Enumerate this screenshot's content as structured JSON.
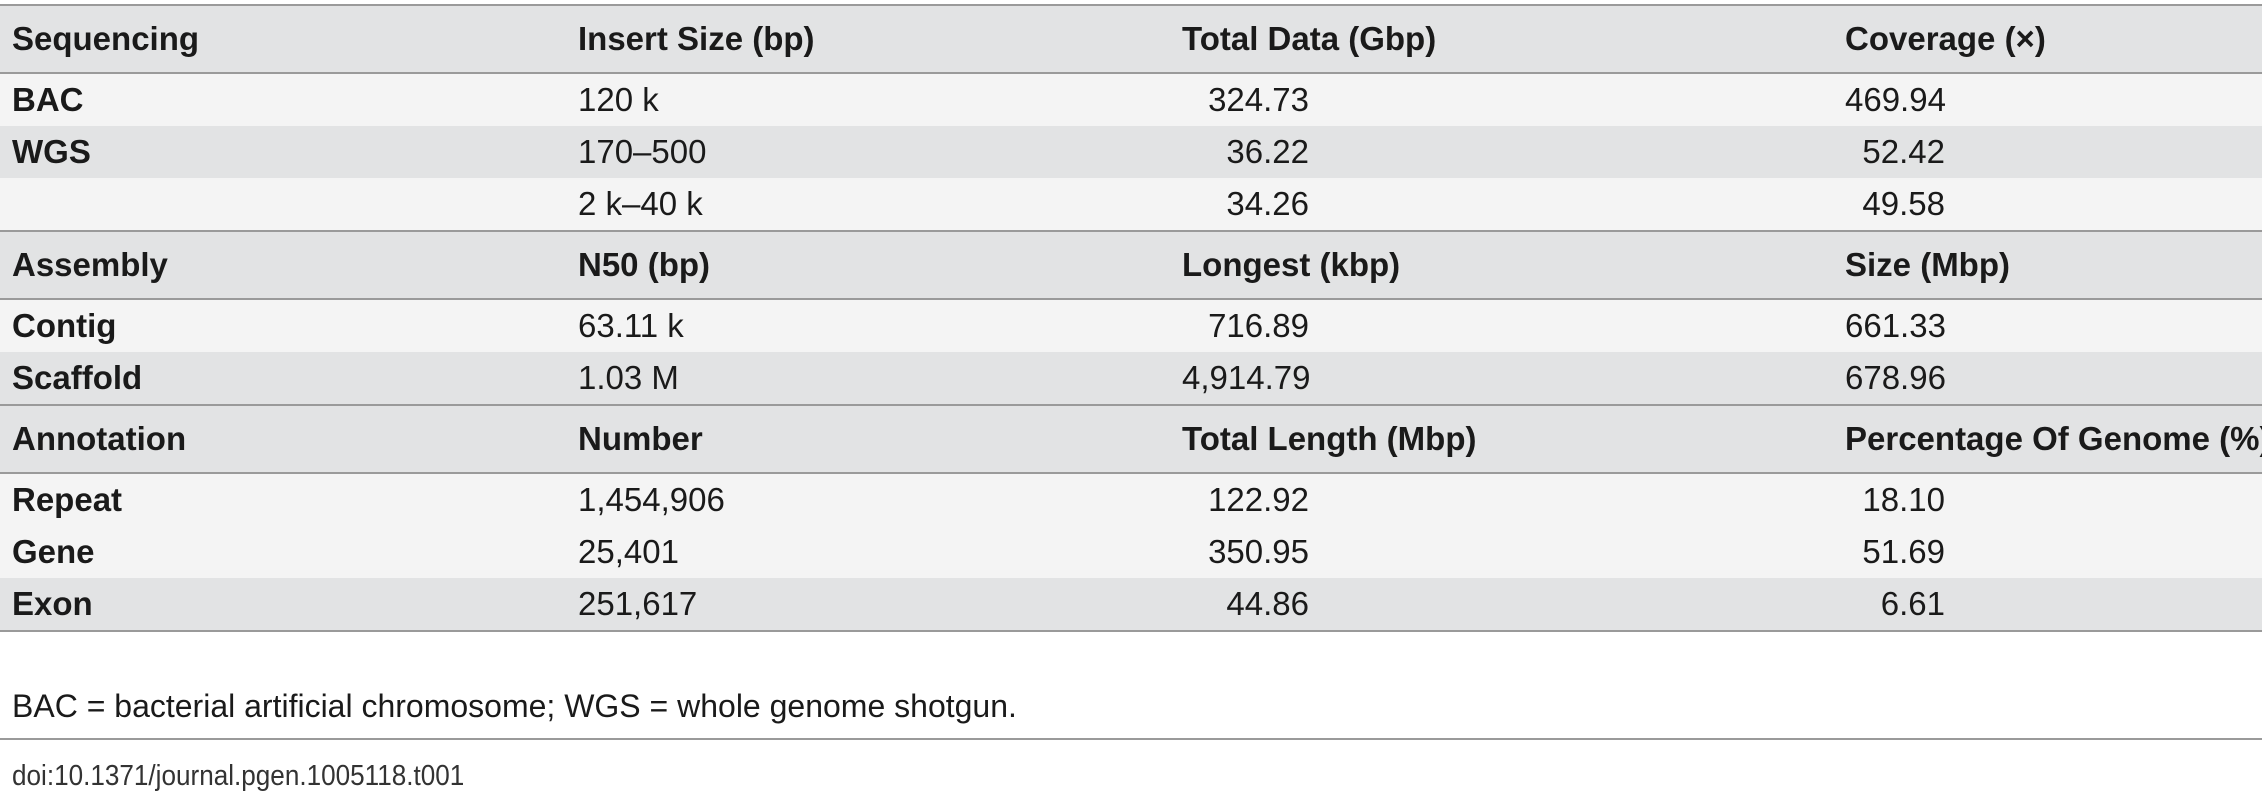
{
  "sections": [
    {
      "headers": [
        "Sequencing",
        "Insert Size (bp)",
        "Total Data (Gbp)",
        "Coverage (×)"
      ],
      "rows": [
        [
          "BAC",
          "120 k",
          "324.73",
          "469.94"
        ],
        [
          "WGS",
          "170–500",
          "36.22",
          "52.42"
        ],
        [
          "",
          "2 k–40 k",
          "34.26",
          "49.58"
        ]
      ]
    },
    {
      "headers": [
        "Assembly",
        "N50 (bp)",
        "Longest (kbp)",
        "Size (Mbp)"
      ],
      "rows": [
        [
          "Contig",
          "63.11 k",
          "716.89",
          "661.33"
        ],
        [
          "Scaffold",
          "1.03 M",
          "4,914.79",
          "678.96"
        ]
      ]
    },
    {
      "headers": [
        "Annotation",
        "Number",
        "Total Length (Mbp)",
        "Percentage Of Genome (%)"
      ],
      "rows": [
        [
          "Repeat",
          "1,454,906",
          "122.92",
          "18.10"
        ],
        [
          "Gene",
          "25,401",
          "350.95",
          "51.69"
        ],
        [
          "Exon",
          "251,617",
          "44.86",
          "6.61"
        ]
      ]
    }
  ],
  "footnote": "BAC = bacterial artificial chromosome; WGS = whole genome shotgun.",
  "doi": "doi:10.1371/journal.pgen.1005118.t001"
}
